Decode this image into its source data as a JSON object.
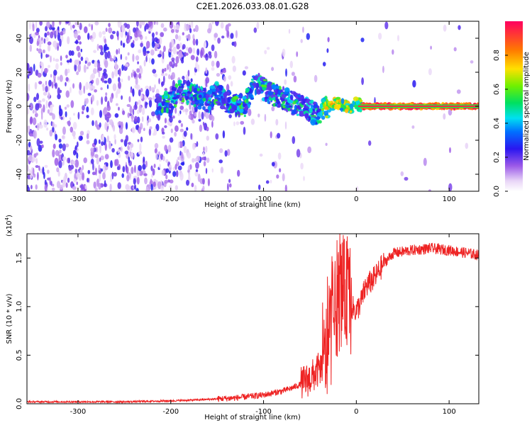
{
  "chart_data": [
    {
      "type": "heatmap",
      "title": "C2E1.2026.033.08.01.G28",
      "xlabel": "Height of straight line (km)",
      "ylabel": "Frequency (Hz)",
      "xlim": [
        -355,
        132
      ],
      "ylim": [
        -50,
        50
      ],
      "xticks": [
        -300,
        -200,
        -100,
        0,
        100
      ],
      "xtick_labels": [
        "-300",
        "-200",
        "-100",
        "0",
        "100"
      ],
      "yticks": [
        -40,
        -20,
        0,
        20,
        40
      ],
      "ytick_labels": [
        "-40",
        "-20",
        "0",
        "20",
        "40"
      ],
      "colorbar": {
        "label": "Normalized spectral amplitude",
        "range": [
          0,
          1
        ],
        "ticks": [
          0.0,
          0.2,
          0.4,
          0.6,
          0.8
        ],
        "tick_labels": [
          "0.0",
          "0.2",
          "0.4",
          "0.6",
          "0.8"
        ]
      },
      "ridge": {
        "x": [
          -200,
          -190,
          -180,
          -160,
          -150,
          -140,
          -130,
          -120,
          -110,
          -100,
          -90,
          -80,
          -70,
          -60,
          -50,
          -40,
          -35,
          -30,
          -25,
          -20,
          -15,
          -10,
          -5,
          0,
          5,
          20,
          60,
          100,
          132
        ],
        "y": [
          2,
          9,
          8,
          3,
          8,
          3,
          1,
          0,
          14,
          10,
          7,
          5,
          3,
          0,
          -3,
          -5,
          -2,
          0,
          1,
          2,
          1,
          0,
          -1,
          2,
          0,
          0,
          0,
          0,
          0
        ]
      }
    },
    {
      "type": "line",
      "xlabel": "Height of straight line (km)",
      "ylabel": "SNR (10 * v/v)",
      "y_scale_label": "(x10",
      "y_scale_exp": "4",
      "xlim": [
        -355,
        132
      ],
      "ylim": [
        0,
        1.75
      ],
      "xticks": [
        -300,
        -200,
        -100,
        0,
        100
      ],
      "xtick_labels": [
        "-300",
        "-200",
        "-100",
        "0",
        "100"
      ],
      "yticks": [
        0.0,
        0.5,
        1.0,
        1.5
      ],
      "ytick_labels": [
        "0.0",
        "0.5",
        "1.0",
        "1.5"
      ],
      "series": [
        {
          "name": "SNR",
          "color": "#ee2222",
          "x": [
            -355,
            -300,
            -250,
            -200,
            -170,
            -150,
            -130,
            -110,
            -100,
            -90,
            -80,
            -70,
            -60,
            -50,
            -45,
            -40,
            -35,
            -30,
            -25,
            -20,
            -15,
            -10,
            -5,
            0,
            5,
            10,
            20,
            30,
            40,
            60,
            80,
            100,
            120,
            132
          ],
          "y": [
            0.02,
            0.02,
            0.02,
            0.03,
            0.04,
            0.05,
            0.06,
            0.08,
            0.09,
            0.11,
            0.13,
            0.16,
            0.2,
            0.26,
            0.3,
            0.36,
            0.42,
            0.6,
            0.85,
            1.05,
            1.15,
            1.15,
            1.0,
            0.95,
            1.05,
            1.2,
            1.3,
            1.45,
            1.55,
            1.58,
            1.6,
            1.58,
            1.55,
            1.53
          ]
        }
      ]
    }
  ]
}
